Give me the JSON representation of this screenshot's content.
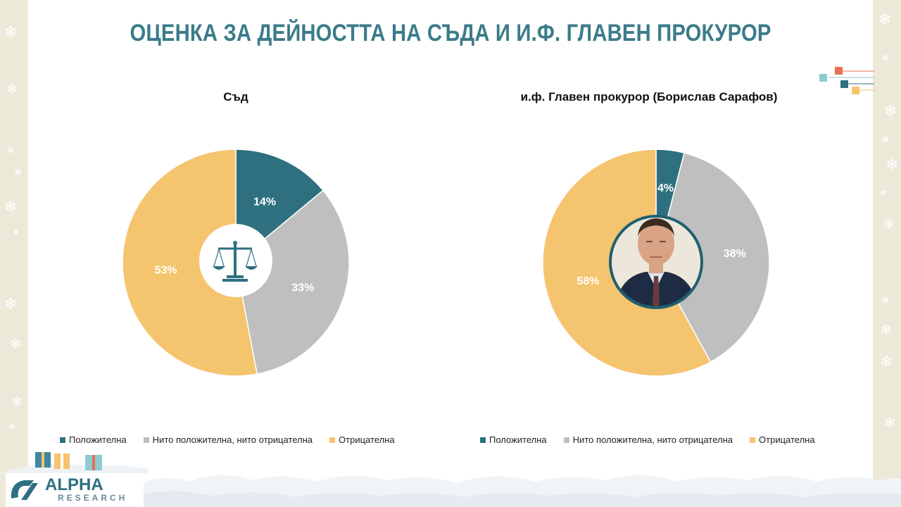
{
  "slide": {
    "title": "ОЦЕНКА ЗА ДЕЙНОСТТА НА СЪДА И И.Ф. ГЛАВЕН ПРОКУРОР"
  },
  "colors": {
    "title": "#3b7b8a",
    "positive": "#2e7080",
    "neutral": "#bfbfbf",
    "negative": "#f5c46e",
    "side_panel": "#ece9d9"
  },
  "legend": {
    "positive": "Положителна",
    "neutral": "Нито положителна, нито отрицателна",
    "negative": "Отрицателна"
  },
  "logo": {
    "name": "ALPHA",
    "sub": "RESEARCH"
  },
  "icons": {
    "court_center": "scales-of-justice-icon",
    "prosecutor_center": "portrait-photo",
    "decoration": "snowflake-icon"
  },
  "chart_data": [
    {
      "type": "pie",
      "title": "Съд",
      "categories": [
        "Положителна",
        "Нито положителна, нито отрицателна",
        "Отрицателна"
      ],
      "values": [
        14,
        33,
        53
      ],
      "labels": [
        "14%",
        "33%",
        "53%"
      ],
      "legend_position": "bottom"
    },
    {
      "type": "pie",
      "title": "и.ф. Главен прокурор (Борислав Сарафов)",
      "categories": [
        "Положителна",
        "Нито положителна, нито отрицателна",
        "Отрицателна"
      ],
      "values": [
        4,
        38,
        58
      ],
      "labels": [
        "4%",
        "38%",
        "58%"
      ],
      "legend_position": "bottom"
    }
  ]
}
